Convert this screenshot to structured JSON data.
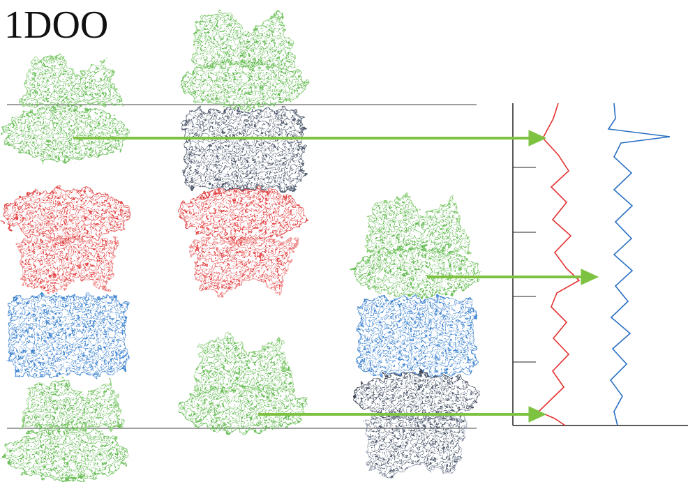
{
  "header": {
    "title": "1DOO"
  }
}
